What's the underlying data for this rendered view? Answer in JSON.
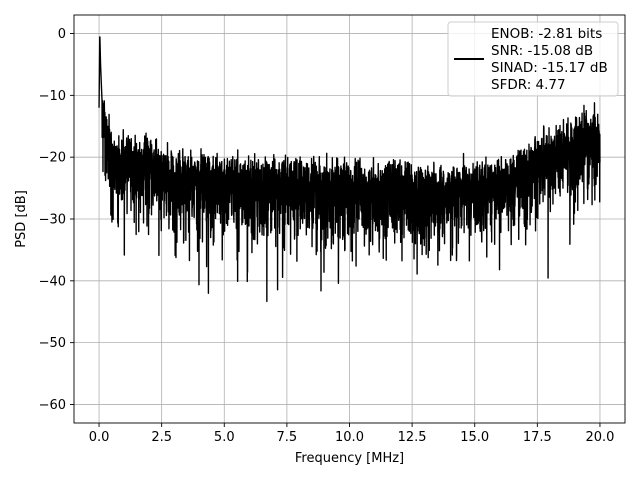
{
  "chart_data": {
    "type": "line",
    "title": "",
    "xlabel": "Frequency [MHz]",
    "ylabel": "PSD [dB]",
    "xlim": [
      -1.0,
      21.0
    ],
    "ylim": [
      -63.0,
      3.0
    ],
    "xticks": [
      0.0,
      2.5,
      5.0,
      7.5,
      10.0,
      12.5,
      15.0,
      17.5,
      20.0
    ],
    "xtick_labels": [
      "0.0",
      "2.5",
      "5.0",
      "7.5",
      "10.0",
      "12.5",
      "15.0",
      "17.5",
      "20.0"
    ],
    "yticks": [
      0,
      -10,
      -20,
      -30,
      -40,
      -50,
      -60
    ],
    "ytick_labels": [
      "0",
      "−10",
      "−20",
      "−30",
      "−40",
      "−50",
      "−60"
    ],
    "grid": true,
    "legend_position": "top-right",
    "series_color": "#000000",
    "series": [
      {
        "name": "",
        "x": [
          0.0,
          0.03,
          0.06,
          0.1,
          0.15,
          0.25,
          0.35,
          0.5,
          0.75,
          1.0,
          1.5,
          2.0,
          2.5,
          3.0,
          3.5,
          4.0,
          4.5,
          5.0,
          5.5,
          6.0,
          7.0,
          8.0,
          9.0,
          10.0,
          11.0,
          12.0,
          12.5,
          13.0,
          14.0,
          14.5,
          15.0,
          16.0,
          16.5,
          17.0,
          17.5,
          18.0,
          18.5,
          19.0,
          19.5,
          19.8,
          20.0
        ],
        "y": [
          -12,
          0,
          -5,
          -9,
          -14,
          -17,
          -19,
          -21,
          -22,
          -22,
          -23,
          -23,
          -24,
          -24,
          -25,
          -25,
          -25.5,
          -25.5,
          -26,
          -26,
          -26,
          -26,
          -26.5,
          -26.5,
          -26.5,
          -26.5,
          -27,
          -27,
          -27,
          -27,
          -27,
          -26,
          -25,
          -24,
          -22,
          -21,
          -20,
          -19,
          -18,
          -18,
          -19
        ]
      }
    ],
    "legend": {
      "lines": [
        "ENOB: -2.81 bits",
        "SNR: -15.08 dB",
        "SINAD: -15.17 dB",
        "SFDR: 4.77"
      ]
    }
  }
}
